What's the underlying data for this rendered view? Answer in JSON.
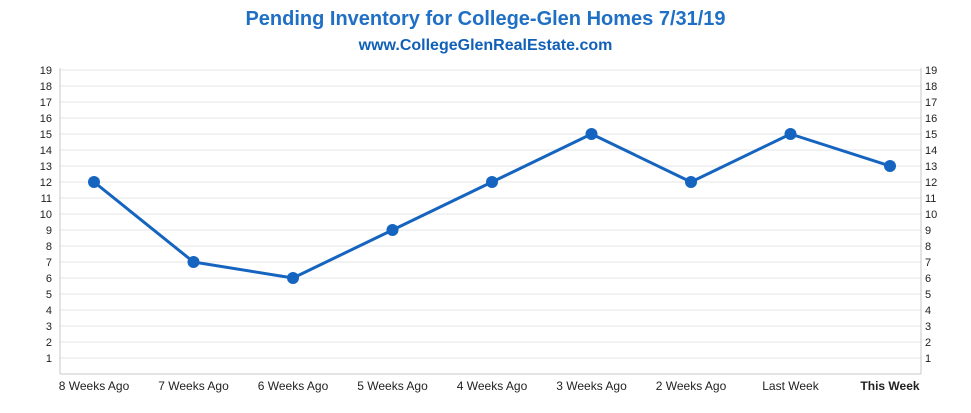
{
  "chart_data": {
    "type": "line",
    "title": "Pending Inventory for College-Glen Homes 7/31/19",
    "subtitle": "www.CollegeGlenRealEstate.com",
    "categories": [
      "8 Weeks Ago",
      "7 Weeks Ago",
      "6 Weeks Ago",
      "5 Weeks Ago",
      "4 Weeks Ago",
      "3 Weeks Ago",
      "2 Weeks Ago",
      "Last Week",
      "This Week"
    ],
    "series": [
      {
        "name": "Pending Inventory",
        "values": [
          12,
          7,
          6,
          9,
          12,
          15,
          12,
          15,
          13
        ]
      }
    ],
    "y_ticks": [
      1,
      2,
      3,
      4,
      5,
      6,
      7,
      8,
      9,
      10,
      11,
      12,
      13,
      14,
      15,
      16,
      17,
      18,
      19
    ],
    "ylim": [
      0,
      19
    ],
    "grid": true,
    "xlabel": "",
    "ylabel": "",
    "highlight_category": "This Week",
    "colors": {
      "line": "#1565c0",
      "title": "#1f6fc5",
      "highlight": "#1a6fc4",
      "grid": "#e6e6e6"
    }
  }
}
